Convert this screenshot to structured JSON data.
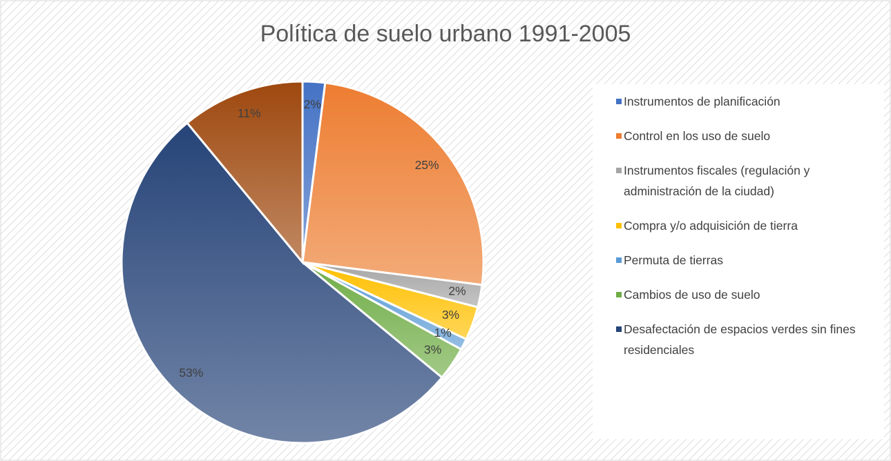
{
  "chart_data": {
    "type": "pie",
    "title": "Política de suelo urbano 1991-2005",
    "categories": [
      "Instrumentos de planificación",
      "Control en los uso de suelo",
      "Instrumentos fiscales (regulación y administración de la ciudad)",
      "Compra y/o adquisición de tierra",
      "Permuta de tierras",
      "Cambios de uso de suelo",
      "Desafectación de espacios verdes sin fines residenciales",
      null
    ],
    "values": [
      2,
      25,
      2,
      3,
      1,
      3,
      53,
      11
    ],
    "value_labels": [
      "2%",
      "25%",
      "2%",
      "3%",
      "1%",
      "3%",
      "53%",
      "11%"
    ],
    "colors": [
      "#4472c4",
      "#ed7d31",
      "#a5a5a5",
      "#ffc000",
      "#5b9bd5",
      "#70ad47",
      "#264478",
      "#9e480e"
    ],
    "legend": "right"
  }
}
